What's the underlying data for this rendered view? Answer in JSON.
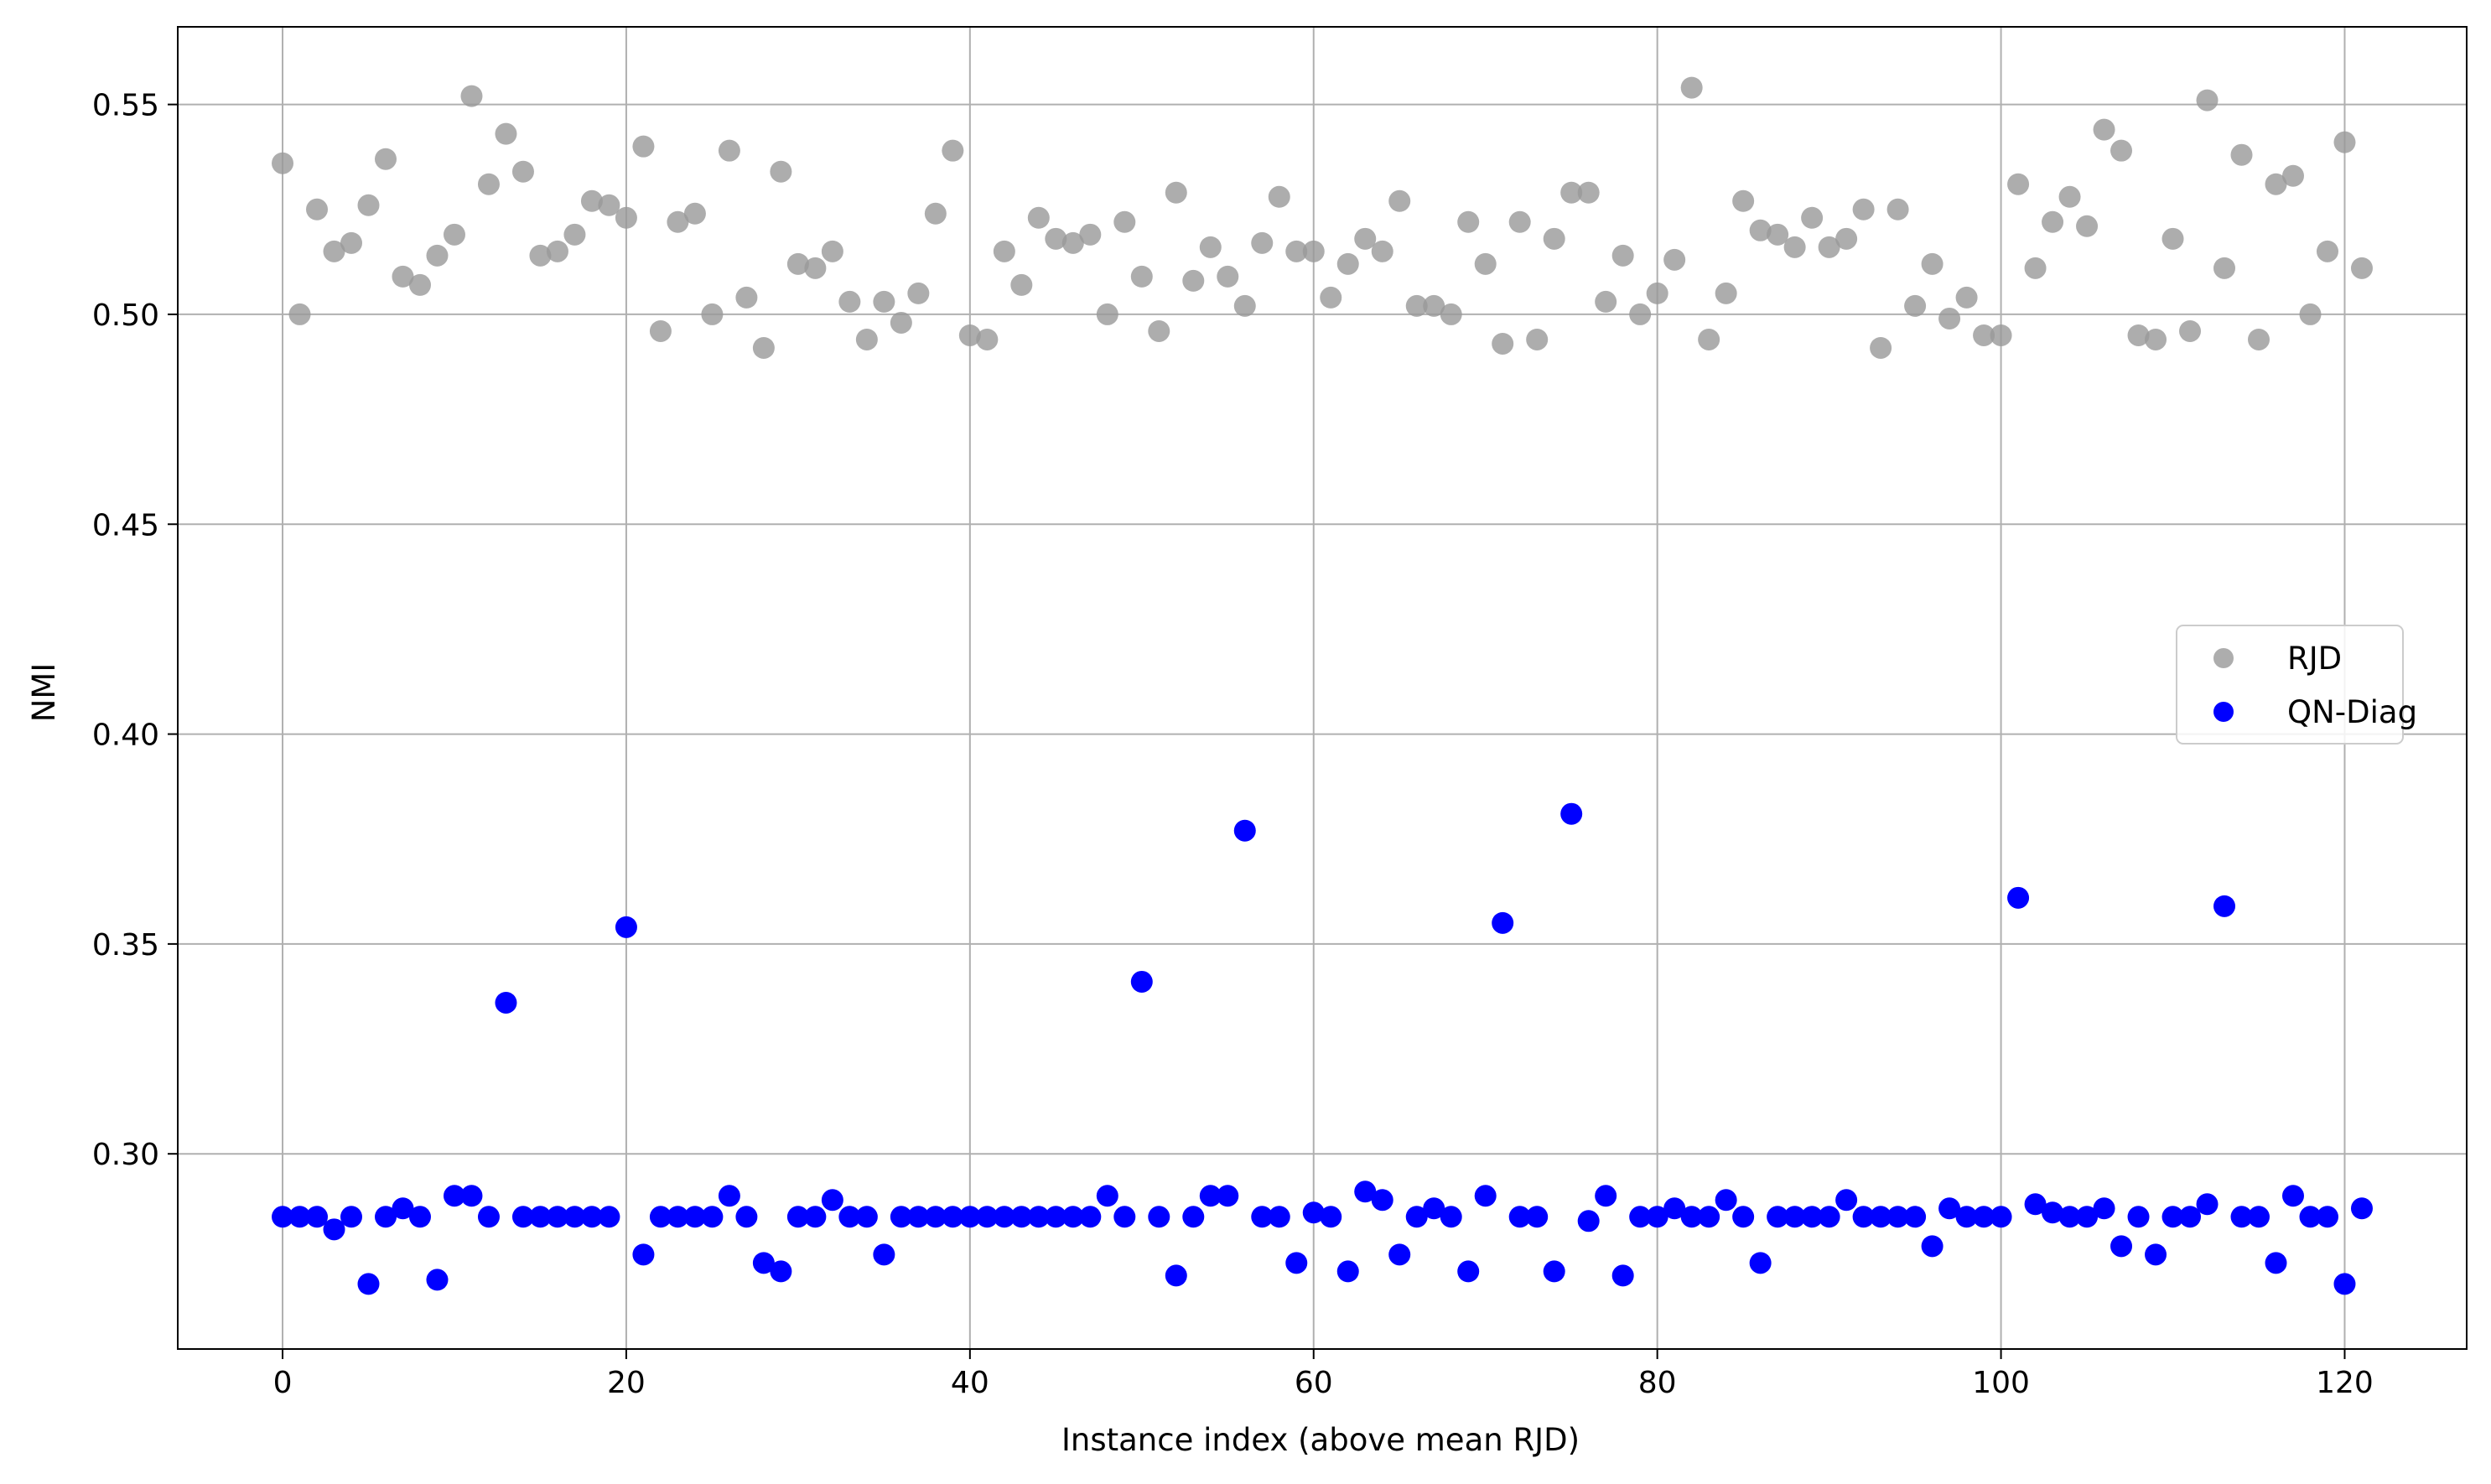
{
  "chart_data": {
    "type": "scatter",
    "title": "",
    "xlabel": "Instance index (above mean RJD)",
    "ylabel": "NMI",
    "xlim": [
      -6.1,
      127.1
    ],
    "ylim": [
      0.2535,
      0.5685
    ],
    "xticks": [
      0,
      20,
      40,
      60,
      80,
      100,
      120
    ],
    "yticks": [
      0.3,
      0.35,
      0.4,
      0.45,
      0.5,
      0.55
    ],
    "xtick_labels": [
      "0",
      "20",
      "40",
      "60",
      "80",
      "100",
      "120"
    ],
    "ytick_labels": [
      "0.30",
      "0.35",
      "0.40",
      "0.45",
      "0.50",
      "0.55"
    ],
    "grid": true,
    "legend_position": "center-right",
    "series": [
      {
        "name": "RJD",
        "color": "#999999",
        "alpha": 0.8,
        "values": [
          0.536,
          0.5,
          0.525,
          0.515,
          0.517,
          0.526,
          0.537,
          0.509,
          0.507,
          0.514,
          0.519,
          0.552,
          0.531,
          0.543,
          0.534,
          0.514,
          0.515,
          0.519,
          0.527,
          0.526,
          0.523,
          0.54,
          0.496,
          0.522,
          0.524,
          0.5,
          0.539,
          0.504,
          0.492,
          0.534,
          0.512,
          0.511,
          0.515,
          0.503,
          0.494,
          0.503,
          0.498,
          0.505,
          0.524,
          0.539,
          0.495,
          0.494,
          0.515,
          0.507,
          0.523,
          0.518,
          0.517,
          0.519,
          0.5,
          0.522,
          0.509,
          0.496,
          0.529,
          0.508,
          0.516,
          0.509,
          0.502,
          0.517,
          0.528,
          0.515,
          0.515,
          0.504,
          0.512,
          0.518,
          0.515,
          0.527,
          0.502,
          0.502,
          0.5,
          0.522,
          0.512,
          0.493,
          0.522,
          0.494,
          0.518,
          0.529,
          0.529,
          0.503,
          0.514,
          0.5,
          0.505,
          0.513,
          0.554,
          0.494,
          0.505,
          0.527,
          0.52,
          0.519,
          0.516,
          0.523,
          0.516,
          0.518,
          0.525,
          0.492,
          0.525,
          0.502,
          0.512,
          0.499,
          0.504,
          0.495,
          0.495,
          0.531,
          0.511,
          0.522,
          0.528,
          0.521,
          0.544,
          0.539,
          0.495,
          0.494,
          0.518,
          0.496,
          0.551,
          0.511,
          0.538,
          0.494,
          0.531,
          0.533,
          0.5,
          0.515,
          0.541,
          0.511
        ]
      },
      {
        "name": "QN-Diag",
        "color": "#0000ff",
        "alpha": 1,
        "values": [
          0.285,
          0.285,
          0.285,
          0.282,
          0.285,
          0.269,
          0.285,
          0.287,
          0.285,
          0.27,
          0.29,
          0.29,
          0.285,
          0.336,
          0.285,
          0.285,
          0.285,
          0.285,
          0.285,
          0.285,
          0.354,
          0.276,
          0.285,
          0.285,
          0.285,
          0.285,
          0.29,
          0.285,
          0.274,
          0.272,
          0.285,
          0.285,
          0.289,
          0.285,
          0.285,
          0.276,
          0.285,
          0.285,
          0.285,
          0.285,
          0.285,
          0.285,
          0.285,
          0.285,
          0.285,
          0.285,
          0.285,
          0.285,
          0.29,
          0.285,
          0.341,
          0.285,
          0.271,
          0.285,
          0.29,
          0.29,
          0.377,
          0.285,
          0.285,
          0.274,
          0.286,
          0.285,
          0.272,
          0.291,
          0.289,
          0.276,
          0.285,
          0.287,
          0.285,
          0.272,
          0.29,
          0.355,
          0.285,
          0.285,
          0.272,
          0.381,
          0.284,
          0.29,
          0.271,
          0.285,
          0.285,
          0.287,
          0.285,
          0.285,
          0.289,
          0.285,
          0.274,
          0.285,
          0.285,
          0.285,
          0.285,
          0.289,
          0.285,
          0.285,
          0.285,
          0.285,
          0.278,
          0.287,
          0.285,
          0.285,
          0.285,
          0.361,
          0.288,
          0.286,
          0.285,
          0.285,
          0.287,
          0.278,
          0.285,
          0.276,
          0.285,
          0.285,
          0.288,
          0.359,
          0.285,
          0.285,
          0.274,
          0.29,
          0.285,
          0.285,
          0.269,
          0.287
        ]
      }
    ]
  }
}
